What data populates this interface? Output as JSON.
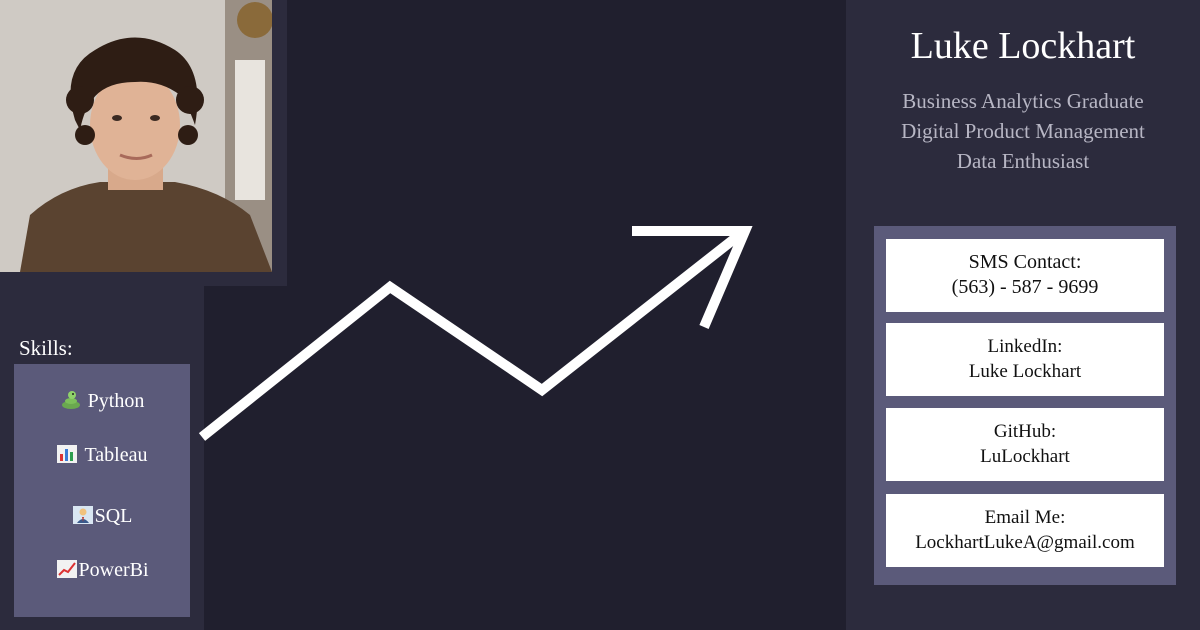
{
  "profile": {
    "name": "Luke Lockhart",
    "taglines": [
      "Business Analytics Graduate",
      "Digital Product Management",
      "Data Enthusiast"
    ]
  },
  "skills": {
    "label": "Skills:",
    "items": [
      {
        "icon": "snake-icon",
        "label": "Python"
      },
      {
        "icon": "bar-chart-icon",
        "label": "Tableau"
      },
      {
        "icon": "office-worker-icon",
        "label": "SQL"
      },
      {
        "icon": "trending-up-chart-icon",
        "label": "PowerBi"
      }
    ]
  },
  "contacts": [
    {
      "label": "SMS Contact:",
      "value": "(563) - 587 - 9699"
    },
    {
      "label": "LinkedIn:",
      "value": "Luke Lockhart"
    },
    {
      "label": "GitHub:",
      "value": "LuLockhart"
    },
    {
      "label": "Email Me:",
      "value": "LockhartLukeA@gmail.com"
    }
  ],
  "colors": {
    "background": "#201f2e",
    "panel": "#2c2b3d",
    "box": "#5b5a7a",
    "tagline": "#b7b6c4",
    "arrow": "#ffffff"
  }
}
